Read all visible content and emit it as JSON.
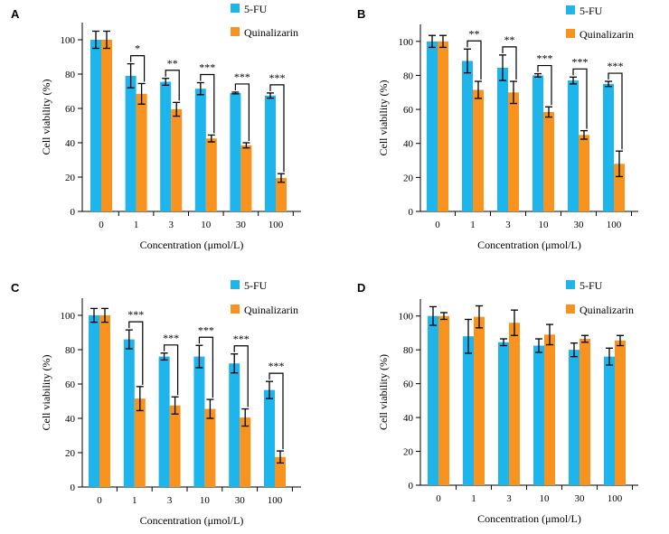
{
  "colors": {
    "5-FU": "#1eb4ec",
    "Quinalizarin": "#f7931e"
  },
  "chart_data": [
    {
      "panel": "A",
      "type": "bar",
      "xlabel": "Concentration (μmol/L)",
      "ylabel": "Cell viability (%)",
      "ylim": [
        0,
        110
      ],
      "yticks": [
        0,
        20,
        40,
        60,
        80,
        100
      ],
      "categories": [
        "0",
        "1",
        "3",
        "10",
        "30",
        "100"
      ],
      "legend": [
        "5-FU",
        "Quinalizarin"
      ],
      "legend_position": "top-right",
      "series": [
        {
          "name": "5-FU",
          "values": [
            100,
            79,
            75.5,
            71.5,
            69,
            67.5
          ],
          "errors": [
            5,
            7,
            2,
            3.5,
            0.5,
            1.5
          ]
        },
        {
          "name": "Quinalizarin",
          "values": [
            100,
            68.5,
            59.5,
            42.5,
            38.5,
            19.5
          ],
          "errors": [
            5,
            6,
            4,
            2,
            1.5,
            2.5
          ]
        }
      ],
      "significance": [
        "",
        "*",
        "**",
        "***",
        "***",
        "***"
      ]
    },
    {
      "panel": "B",
      "type": "bar",
      "xlabel": "Concentration (μmol/L)",
      "ylabel": "Cell viability (%)",
      "ylim": [
        0,
        110
      ],
      "yticks": [
        0,
        20,
        40,
        60,
        80,
        100
      ],
      "categories": [
        "0",
        "1",
        "3",
        "10",
        "30",
        "100"
      ],
      "legend": [
        "5-FU",
        "Quinalizarin"
      ],
      "legend_position": "top-right",
      "series": [
        {
          "name": "5-FU",
          "values": [
            100,
            88.5,
            84.5,
            80,
            77,
            75
          ],
          "errors": [
            3.5,
            7,
            7.5,
            1,
            2,
            1.5
          ]
        },
        {
          "name": "Quinalizarin",
          "values": [
            100,
            71.5,
            70,
            58.5,
            45,
            28
          ],
          "errors": [
            3.5,
            5,
            6.5,
            3,
            2.5,
            7.5
          ]
        }
      ],
      "significance": [
        "",
        "**",
        "**",
        "***",
        "***",
        "***"
      ]
    },
    {
      "panel": "C",
      "type": "bar",
      "xlabel": "Concentration (μmol/L)",
      "ylabel": "Cell viability (%)",
      "ylim": [
        0,
        110
      ],
      "yticks": [
        0,
        20,
        40,
        60,
        80,
        100
      ],
      "categories": [
        "0",
        "1",
        "3",
        "10",
        "30",
        "100"
      ],
      "legend": [
        "5-FU",
        "Quinalizarin"
      ],
      "legend_position": "top-right",
      "series": [
        {
          "name": "5-FU",
          "values": [
            100,
            86,
            76,
            76,
            72,
            56.5
          ],
          "errors": [
            4,
            5.5,
            2,
            6.5,
            5.5,
            5
          ]
        },
        {
          "name": "Quinalizarin",
          "values": [
            100,
            51.5,
            47.5,
            45.5,
            40.5,
            17.5
          ],
          "errors": [
            4,
            7,
            5,
            5.5,
            5,
            3.5
          ]
        }
      ],
      "significance": [
        "",
        "***",
        "***",
        "***",
        "***",
        "***"
      ]
    },
    {
      "panel": "D",
      "type": "bar",
      "xlabel": "Concentration (μmol/L)",
      "ylabel": "Cell viability (%)",
      "ylim": [
        0,
        110
      ],
      "yticks": [
        0,
        20,
        40,
        60,
        80,
        100
      ],
      "categories": [
        "0",
        "1",
        "3",
        "10",
        "30",
        "100"
      ],
      "legend": [
        "5-FU",
        "Quinalizarin"
      ],
      "legend_position": "top-right",
      "series": [
        {
          "name": "5-FU",
          "values": [
            100,
            88,
            84.5,
            82.5,
            80,
            76
          ],
          "errors": [
            5.5,
            10,
            2,
            4,
            4,
            5
          ]
        },
        {
          "name": "Quinalizarin",
          "values": [
            100,
            99.5,
            96,
            89,
            86.5,
            85.5
          ],
          "errors": [
            2,
            6.5,
            7.5,
            6,
            2,
            3
          ]
        }
      ],
      "significance": [
        "",
        "",
        "",
        "",
        "",
        ""
      ]
    }
  ]
}
